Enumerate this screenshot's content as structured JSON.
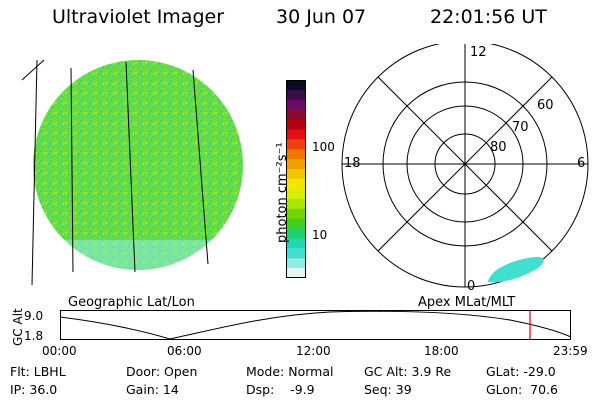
{
  "header": {
    "instrument": "Ultraviolet Imager",
    "date": "30 Jun 07",
    "time": "22:01:56 UT"
  },
  "panels": {
    "left_label": "Geographic Lat/Lon",
    "right_label": "Apex MLat/MLT"
  },
  "colorbar": {
    "unit_label": "photon cm⁻²s⁻¹",
    "ticks": [
      "100",
      "10"
    ],
    "colors": [
      "#0a0a2a",
      "#3a0d4a",
      "#6a0a6a",
      "#8a0a30",
      "#b50010",
      "#e01010",
      "#f04010",
      "#f07800",
      "#f0a000",
      "#f0c800",
      "#f0e600",
      "#d8f000",
      "#a8e800",
      "#70d800",
      "#40d020",
      "#20d070",
      "#20d8b0",
      "#40e0d0",
      "#90ece6",
      "#e6f4f4"
    ]
  },
  "polar": {
    "mlt_labels": {
      "top": "12",
      "left": "18",
      "right": "6",
      "bottom": "0"
    },
    "lat_labels": [
      "60",
      "70",
      "80"
    ]
  },
  "altitude_plot": {
    "ylabel": "GC Alt",
    "yticks": [
      "9.0",
      "1.8"
    ],
    "xticks": [
      "00:00",
      "06:00",
      "12:00",
      "18:00",
      "23:59"
    ],
    "current_marker_color": "#e00000"
  },
  "info": {
    "flt": "Flt: LBHL",
    "ip": "IP: 36.0",
    "door": "Door: Open",
    "gain": "Gain: 14",
    "mode": "Mode: Normal",
    "dsp": "Dsp:    -9.9",
    "gcalt": "GC Alt: 3.9 Re",
    "seq": "Seq: 39",
    "glat": "GLat: -29.0",
    "glon": "GLon:  70.6"
  }
}
